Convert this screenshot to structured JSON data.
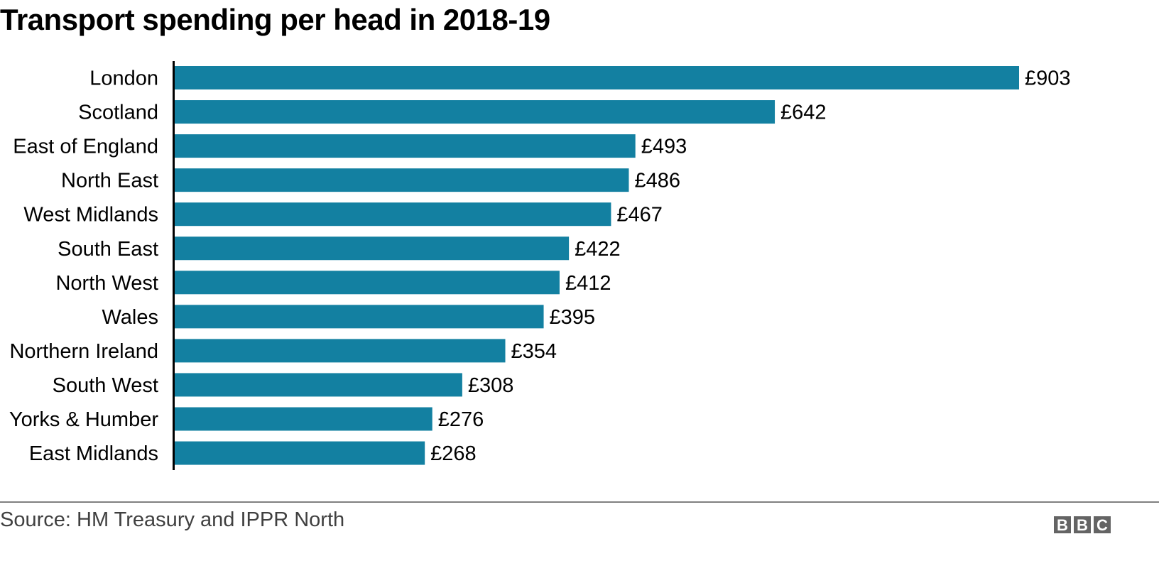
{
  "chart_data": {
    "type": "bar",
    "orientation": "horizontal",
    "title": "Transport spending per head in 2018-19",
    "xlabel": "",
    "ylabel": "",
    "value_prefix": "£",
    "categories": [
      "London",
      "Scotland",
      "East of England",
      "North East",
      "West Midlands",
      "South East",
      "North West",
      "Wales",
      "Northern Ireland",
      "South West",
      "Yorks & Humber",
      "East Midlands"
    ],
    "values": [
      903,
      642,
      493,
      486,
      467,
      422,
      412,
      395,
      354,
      308,
      276,
      268
    ],
    "data_labels": [
      "£903",
      "£642",
      "£493",
      "£486",
      "£467",
      "£422",
      "£412",
      "£395",
      "£354",
      "£308",
      "£276",
      "£268"
    ],
    "xlim": [
      0,
      903
    ],
    "grid": false,
    "bar_color": "#1380A1"
  },
  "footer": {
    "source": "Source: HM Treasury and IPPR North",
    "logo_letters": [
      "B",
      "B",
      "C"
    ]
  }
}
